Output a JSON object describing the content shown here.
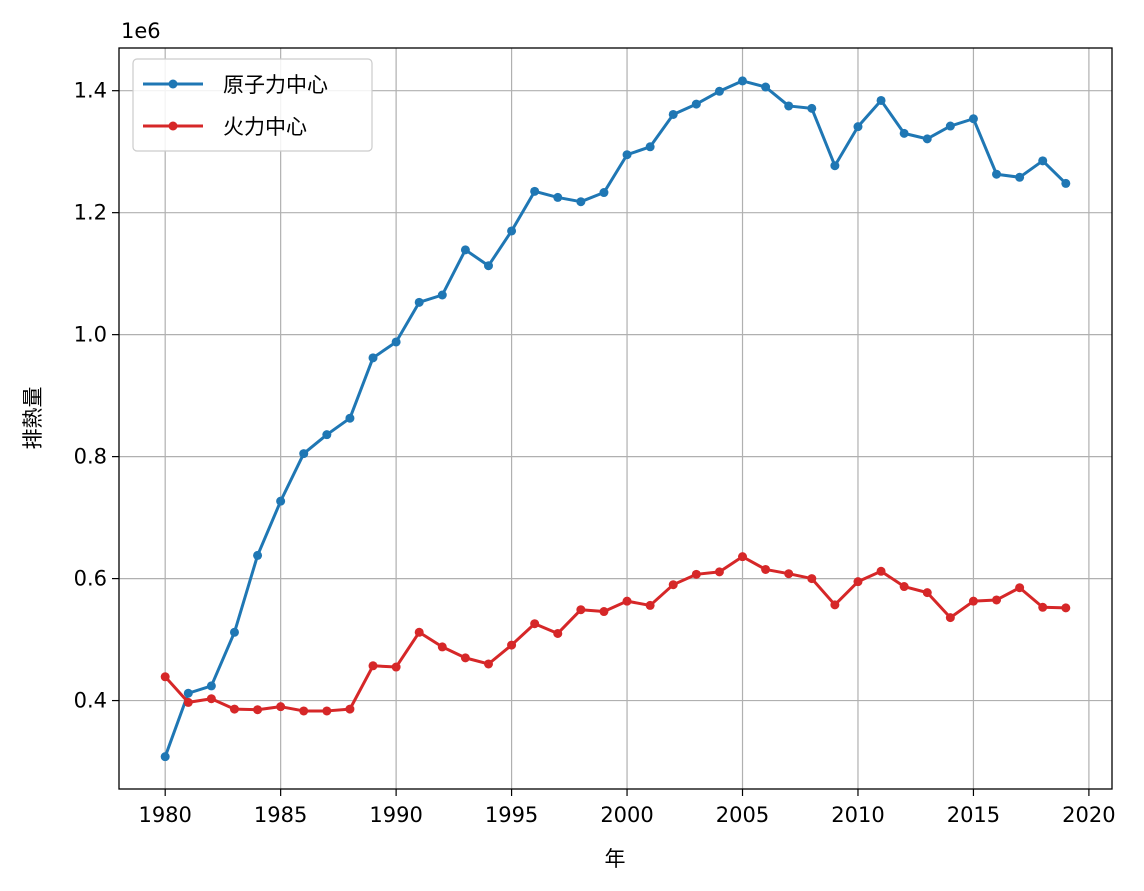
{
  "chart_data": {
    "type": "line",
    "xlabel": "年",
    "ylabel": "排熱量",
    "y_offset_label": "1e6",
    "xlim": [
      1978,
      2021
    ],
    "ylim": [
      255000,
      1470000
    ],
    "x_ticks": [
      1980,
      1985,
      1990,
      1995,
      2000,
      2005,
      2010,
      2015,
      2020
    ],
    "x_tick_labels": [
      "1980",
      "1985",
      "1990",
      "1995",
      "2000",
      "2005",
      "2010",
      "2015",
      "2020"
    ],
    "y_ticks": [
      400000,
      600000,
      800000,
      1000000,
      1200000,
      1400000
    ],
    "y_tick_labels": [
      "0.4",
      "0.6",
      "0.8",
      "1.0",
      "1.2",
      "1.4"
    ],
    "grid": true,
    "legend_position": "upper-left",
    "x": [
      1980,
      1981,
      1982,
      1983,
      1984,
      1985,
      1986,
      1987,
      1988,
      1989,
      1990,
      1991,
      1992,
      1993,
      1994,
      1995,
      1996,
      1997,
      1998,
      1999,
      2000,
      2001,
      2002,
      2003,
      2004,
      2005,
      2006,
      2007,
      2008,
      2009,
      2010,
      2011,
      2012,
      2013,
      2014,
      2015,
      2016,
      2017,
      2018,
      2019
    ],
    "series": [
      {
        "name": "原子力中心",
        "color": "#1f77b4",
        "values": [
          308000,
          412000,
          424000,
          512000,
          638000,
          727000,
          805000,
          836000,
          863000,
          962000,
          988000,
          1053000,
          1065000,
          1139000,
          1113000,
          1170000,
          1235000,
          1225000,
          1218000,
          1233000,
          1295000,
          1308000,
          1361000,
          1378000,
          1399000,
          1416000,
          1406000,
          1375000,
          1371000,
          1277000,
          1341000,
          1384000,
          1330000,
          1321000,
          1342000,
          1354000,
          1263000,
          1258000,
          1285000,
          1248000
        ]
      },
      {
        "name": "火力中心",
        "color": "#d62728",
        "values": [
          439000,
          397000,
          403000,
          386000,
          385000,
          390000,
          383000,
          383000,
          386000,
          457000,
          455000,
          512000,
          488000,
          470000,
          460000,
          491000,
          526000,
          510000,
          549000,
          546000,
          563000,
          556000,
          590000,
          607000,
          611000,
          636000,
          615000,
          608000,
          600000,
          557000,
          595000,
          612000,
          587000,
          577000,
          536000,
          563000,
          565000,
          585000,
          553000,
          552000
        ]
      }
    ]
  }
}
